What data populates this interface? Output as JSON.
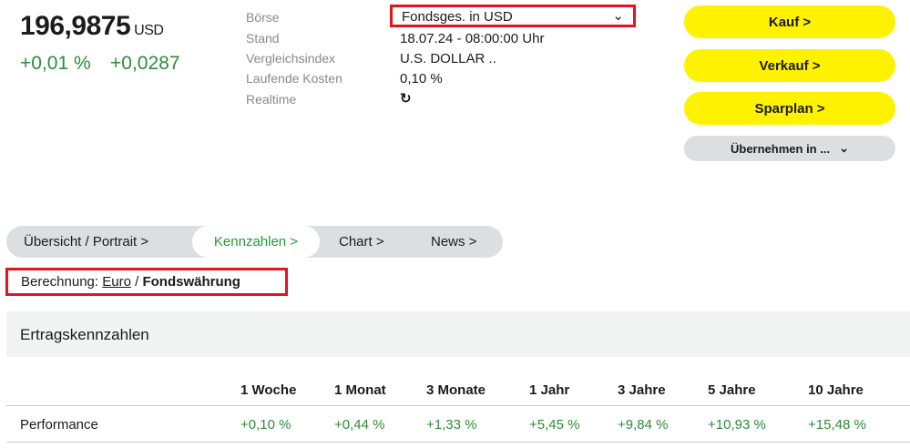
{
  "quote": {
    "price": "196,9875",
    "currency": "USD",
    "change_pct": "+0,01 %",
    "change_abs": "+0,0287"
  },
  "info": {
    "labels": [
      "Börse",
      "Stand",
      "Vergleichsindex",
      "Laufende Kosten",
      "Realtime"
    ],
    "exchange": "Fondsges. in USD",
    "stand": "18.07.24 - 08:00:00 Uhr",
    "index": "U.S. DOLLAR ..",
    "costs": "0,10 %",
    "realtime_icon": "refresh-icon"
  },
  "actions": {
    "buy": "Kauf >",
    "sell": "Verkauf >",
    "savings": "Sparplan >",
    "adopt": "Übernehmen in ..."
  },
  "tabs": [
    "Übersicht / Portrait >",
    "Kennzahlen >",
    "Chart >",
    "News >"
  ],
  "calc": {
    "label": "Berechnung:",
    "euro": "Euro",
    "sep": "/",
    "fund": "Fondswährung"
  },
  "section": {
    "title": "Ertragskennzahlen",
    "headers": [
      "1 Woche",
      "1 Monat",
      "3 Monate",
      "1 Jahr",
      "3 Jahre",
      "5 Jahre",
      "10 Jahre"
    ],
    "row_label": "Performance",
    "values": [
      "+0,10 %",
      "+0,44 %",
      "+1,33 %",
      "+5,45 %",
      "+9,84 %",
      "+10,93 %",
      "+15,48 %"
    ]
  },
  "colors": {
    "positive": "#2e8b3a",
    "button": "#fff200",
    "highlight": "#e3141d"
  }
}
